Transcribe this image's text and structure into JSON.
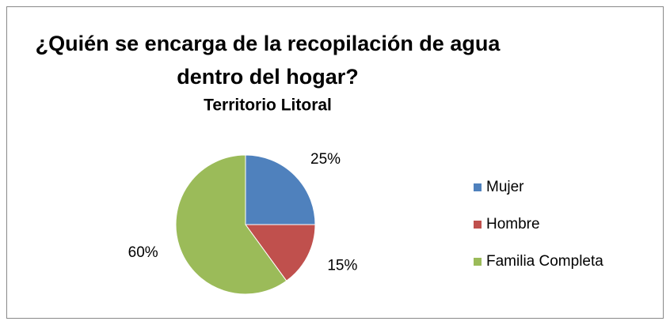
{
  "chart_data": {
    "type": "pie",
    "title": [
      "¿Quién se encarga de la recopilación de agua",
      "dentro del hogar?"
    ],
    "subtitle": "Territorio Litoral",
    "categories": [
      "Mujer",
      "Hombre",
      "Familia Completa"
    ],
    "values": [
      25,
      15,
      60
    ],
    "value_labels": [
      "25%",
      "15%",
      "60%"
    ],
    "colors": [
      "#4f81bd",
      "#c0504d",
      "#9bbb59"
    ],
    "legend": "right"
  }
}
